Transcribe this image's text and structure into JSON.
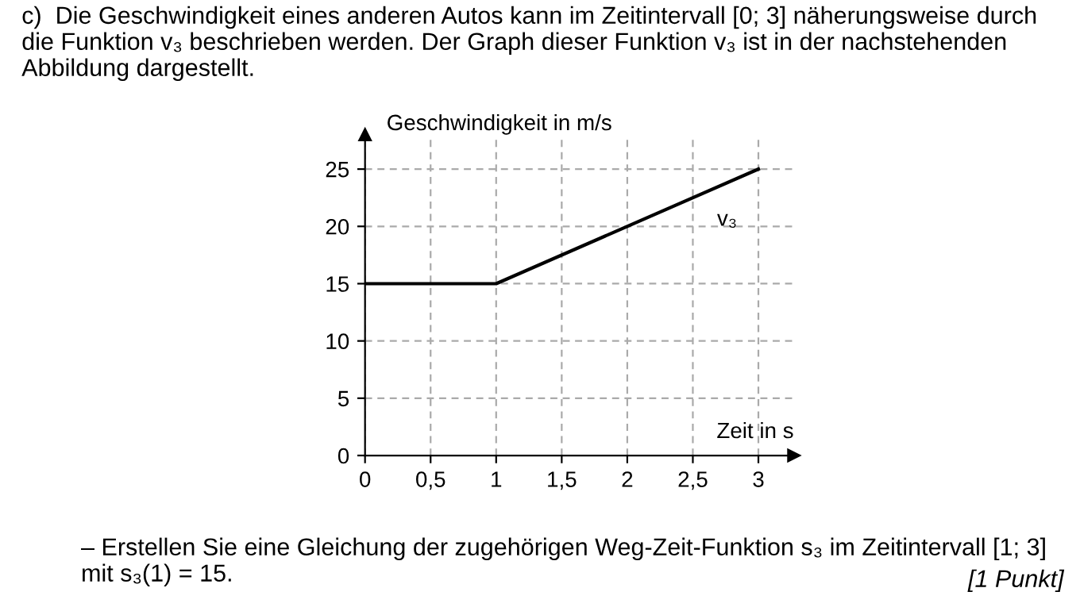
{
  "chart_data": {
    "type": "line",
    "title": "c)  Die Geschwindigkeit eines anderen Autos kann im Zeitintervall [0; 3] näherungsweise durch die Funktion v₃ beschrieben werden. Der Graph dieser Funktion v₃ ist in der nachstehenden Abbildung dargestellt.",
    "xlabel": "Zeit in s",
    "ylabel": "Geschwindigkeit in m/s",
    "x": [
      0,
      1,
      3
    ],
    "series": [
      {
        "name": "v₃",
        "color": "#000000",
        "values": [
          15,
          15,
          25
        ]
      }
    ],
    "xlim": [
      0,
      3.27
    ],
    "ylim": [
      0,
      28
    ],
    "xticks": [
      0,
      {
        "value": 0.5,
        "label": "0,5"
      },
      1,
      {
        "value": 1.5,
        "label": "1,5"
      },
      2,
      {
        "value": 2.5,
        "label": "2,5"
      },
      3
    ],
    "yticks": [
      0,
      5,
      10,
      15,
      20,
      25
    ],
    "grid": true,
    "line_style": "solid",
    "marker": "none",
    "annotations": [
      "– Erstellen Sie eine Gleichung der zugehörigen Weg-Zeit-Funktion s₃ im Zeitintervall [1; 3] mit s₃(1) = 15.",
      "[1 Punkt]"
    ]
  }
}
